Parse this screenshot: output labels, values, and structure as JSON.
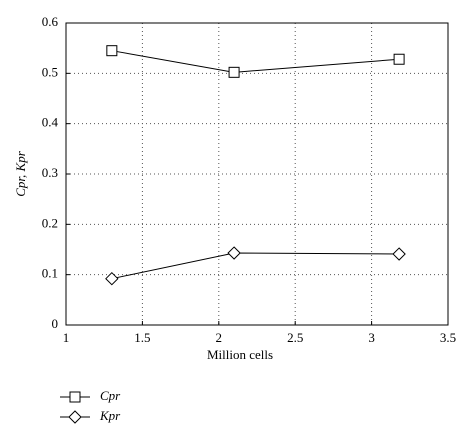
{
  "chart_data": {
    "type": "line",
    "xlabel": "Million cells",
    "ylabel": "Cpr, Kpr",
    "x": [
      1.3,
      2.1,
      3.18
    ],
    "series": [
      {
        "name": "Cpr",
        "color": "#000000",
        "marker": "square",
        "values": [
          0.545,
          0.502,
          0.528
        ]
      },
      {
        "name": "Kpr",
        "color": "#000000",
        "marker": "diamond",
        "values": [
          0.092,
          0.143,
          0.141
        ]
      }
    ],
    "xlim": [
      1,
      3.5
    ],
    "xticks": [
      1,
      1.5,
      2,
      2.5,
      3,
      3.5
    ],
    "ylim": [
      0,
      0.6
    ],
    "yticks": [
      0,
      0.1,
      0.2,
      0.3,
      0.4,
      0.5,
      0.6
    ],
    "grid": true,
    "legend": "below-left"
  }
}
